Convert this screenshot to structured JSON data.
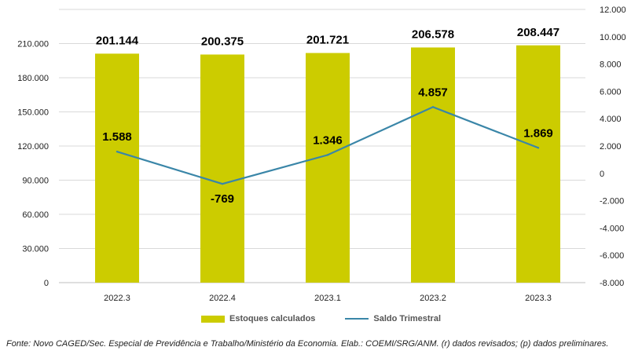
{
  "chart_data": {
    "type": "bar",
    "categories": [
      "2022.3",
      "2022.4",
      "2023.1",
      "2023.2",
      "2023.3"
    ],
    "series": [
      {
        "name": "Estoques calculados",
        "type": "bar",
        "axis": "left",
        "values": [
          201144,
          200375,
          201721,
          206578,
          208447
        ],
        "labels": [
          "201.144",
          "200.375",
          "201.721",
          "206.578",
          "208.447"
        ],
        "color": "#cccc00"
      },
      {
        "name": "Saldo Trimestral",
        "type": "line",
        "axis": "right",
        "values": [
          1588,
          -769,
          1346,
          4857,
          1869
        ],
        "labels": [
          "1.588",
          "-769",
          "1.346",
          "4.857",
          "1.869"
        ],
        "color": "#3a86a8"
      }
    ],
    "y_left": {
      "ylim": [
        0,
        240000
      ],
      "ticks": [
        0,
        30000,
        60000,
        90000,
        120000,
        150000,
        180000,
        210000
      ],
      "tick_labels": [
        "0",
        "30.000",
        "60.000",
        "90.000",
        "120.000",
        "150.000",
        "180.000",
        "210.000"
      ]
    },
    "y_right": {
      "ylim": [
        -8000,
        12000
      ],
      "ticks": [
        -8000,
        -6000,
        -4000,
        -2000,
        0,
        2000,
        4000,
        6000,
        8000,
        10000,
        12000
      ],
      "tick_labels": [
        "-8.000",
        "-6.000",
        "-4.000",
        "-2.000",
        "0",
        "2.000",
        "4.000",
        "6.000",
        "8.000",
        "10.000",
        "12.000"
      ]
    },
    "grid": true,
    "legend_position": "bottom"
  },
  "legend": {
    "bar_label": "Estoques calculados",
    "line_label": "Saldo Trimestral"
  },
  "source": "Fonte: Novo CAGED/Sec. Especial de Previdência e Trabalho/Ministério da Economia. Elab.: COEMI/SRG/ANM. (r) dados revisados; (p) dados preliminares."
}
